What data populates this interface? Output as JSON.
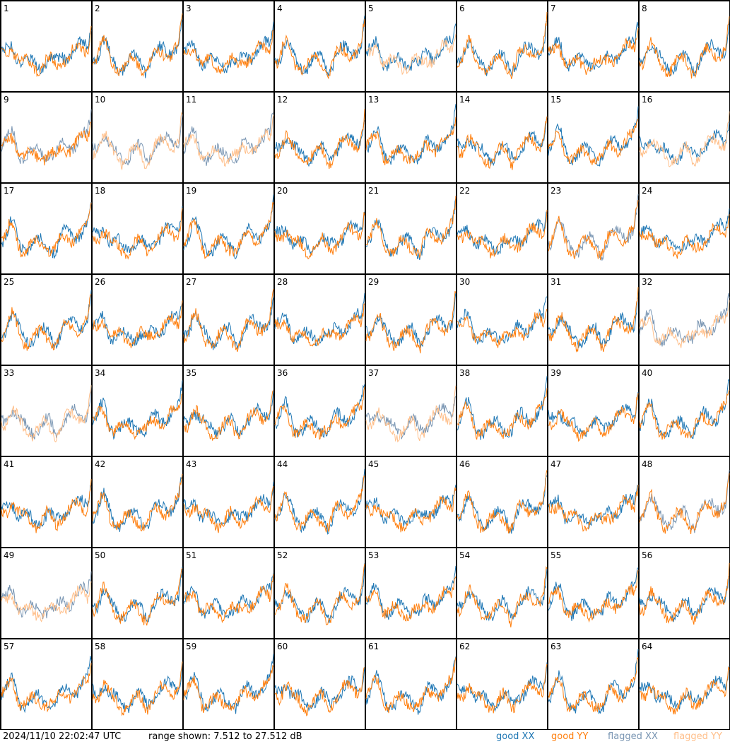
{
  "chart_data": {
    "type": "line",
    "layout": "8x8 small multiples",
    "panel_labels": [
      "1",
      "2",
      "3",
      "4",
      "5",
      "6",
      "7",
      "8",
      "9",
      "10",
      "11",
      "12",
      "13",
      "14",
      "15",
      "16",
      "17",
      "18",
      "19",
      "20",
      "21",
      "22",
      "23",
      "24",
      "25",
      "26",
      "27",
      "28",
      "29",
      "30",
      "31",
      "32",
      "33",
      "34",
      "35",
      "36",
      "37",
      "38",
      "39",
      "40",
      "41",
      "42",
      "43",
      "44",
      "45",
      "46",
      "47",
      "48",
      "49",
      "50",
      "51",
      "52",
      "53",
      "54",
      "55",
      "56",
      "57",
      "58",
      "59",
      "60",
      "61",
      "62",
      "63",
      "64"
    ],
    "xx_style": [
      "good",
      "good",
      "good",
      "good",
      "good",
      "good",
      "good",
      "good",
      "flagged",
      "flagged",
      "flagged",
      "good",
      "good",
      "good",
      "good",
      "good",
      "good",
      "good",
      "good",
      "good",
      "good",
      "good",
      "flagged",
      "good",
      "good",
      "good",
      "good",
      "good",
      "good",
      "good",
      "good",
      "flagged",
      "flagged",
      "good",
      "good",
      "good",
      "flagged",
      "good",
      "good",
      "good",
      "good",
      "good",
      "good",
      "good",
      "good",
      "good",
      "good",
      "flagged",
      "flagged",
      "good",
      "good",
      "good",
      "good",
      "good",
      "good",
      "good",
      "good",
      "good",
      "good",
      "good",
      "good",
      "good",
      "good",
      "good"
    ],
    "yy_style": [
      "good",
      "good",
      "good",
      "good",
      "flagged",
      "good",
      "good",
      "good",
      "good",
      "flagged",
      "flagged",
      "good",
      "good",
      "good",
      "good",
      "flagged",
      "good",
      "good",
      "good",
      "good",
      "good",
      "good",
      "good",
      "good",
      "good",
      "good",
      "good",
      "good",
      "good",
      "good",
      "good",
      "flagged",
      "flagged",
      "good",
      "good",
      "good",
      "flagged",
      "good",
      "good",
      "good",
      "good",
      "good",
      "good",
      "good",
      "good",
      "good",
      "good",
      "good",
      "flagged",
      "good",
      "good",
      "good",
      "good",
      "good",
      "good",
      "good",
      "good",
      "good",
      "good",
      "good",
      "good",
      "good",
      "good",
      "good"
    ],
    "y_range_db": [
      7.512,
      27.512
    ],
    "grid": false,
    "legend_position": "bottom-right"
  },
  "footer": {
    "timestamp": "2024/11/10 22:02:47 UTC",
    "range_text": "range shown: 7.512 to 27.512 dB"
  },
  "legend": {
    "good_xx": "good XX",
    "good_yy": "good YY",
    "flagged_xx": "flagged XX",
    "flagged_yy": "flagged YY"
  },
  "colors": {
    "good_xx": "#1f77b4",
    "good_yy": "#ff7f0e",
    "flagged_xx": "#7a96b3",
    "flagged_yy": "#ffbf8a"
  }
}
